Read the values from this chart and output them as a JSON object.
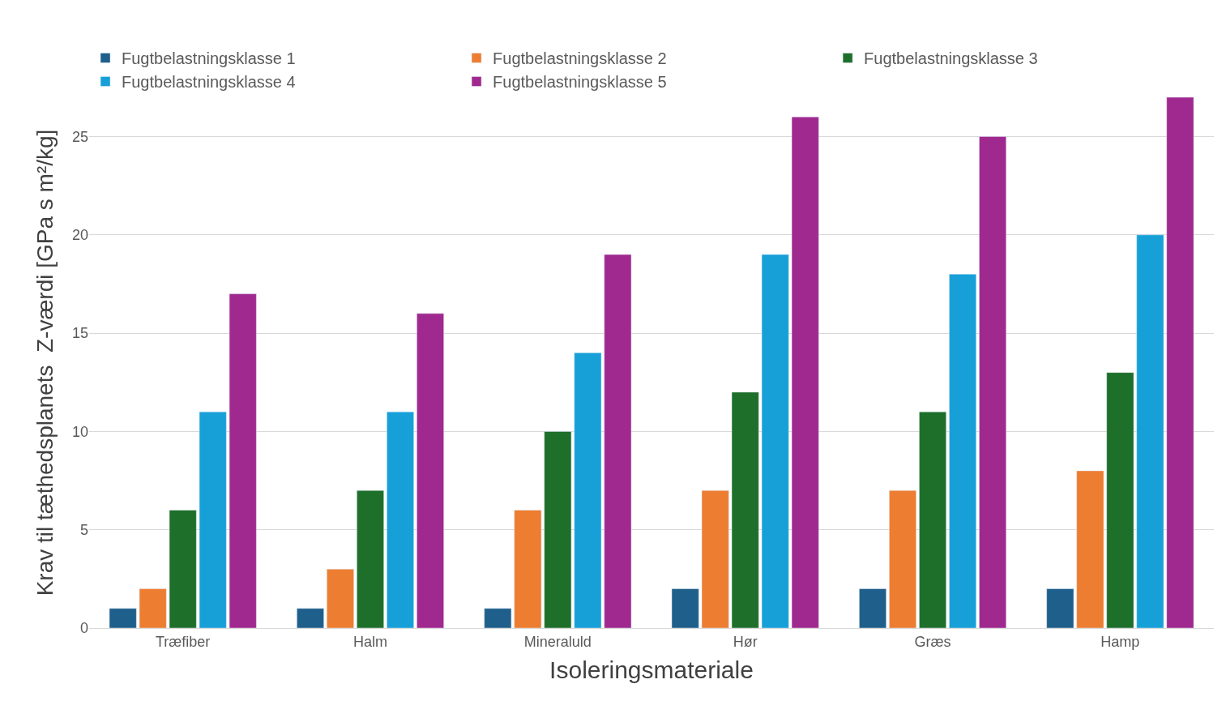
{
  "chart_data": {
    "type": "bar",
    "xlabel": "Isoleringsmateriale",
    "ylabel": "Krav til tæthedsplanets  Z-værdi [GPa s m²/kg]",
    "categories": [
      "Træfiber",
      "Halm",
      "Mineraluld",
      "Hør",
      "Græs",
      "Hamp"
    ],
    "series": [
      {
        "name": "Fugtbelastningsklasse 1",
        "color": "#1f5f8b",
        "values": [
          1,
          1,
          1,
          2,
          2,
          2
        ]
      },
      {
        "name": "Fugtbelastningsklasse 2",
        "color": "#ed7d31",
        "values": [
          2,
          3,
          6,
          7,
          7,
          8
        ]
      },
      {
        "name": "Fugtbelastningsklasse 3",
        "color": "#1e6f2a",
        "values": [
          6,
          7,
          10,
          12,
          11,
          13
        ]
      },
      {
        "name": "Fugtbelastningsklasse 4",
        "color": "#17a0d8",
        "values": [
          11,
          11,
          14,
          19,
          18,
          20
        ]
      },
      {
        "name": "Fugtbelastningsklasse 5",
        "color": "#a0298f",
        "values": [
          17,
          16,
          19,
          26,
          25,
          27
        ]
      }
    ],
    "ylim": [
      0,
      27
    ],
    "yticks": [
      0,
      5,
      10,
      15,
      20,
      25
    ],
    "grid": "y",
    "legend": "top left"
  }
}
